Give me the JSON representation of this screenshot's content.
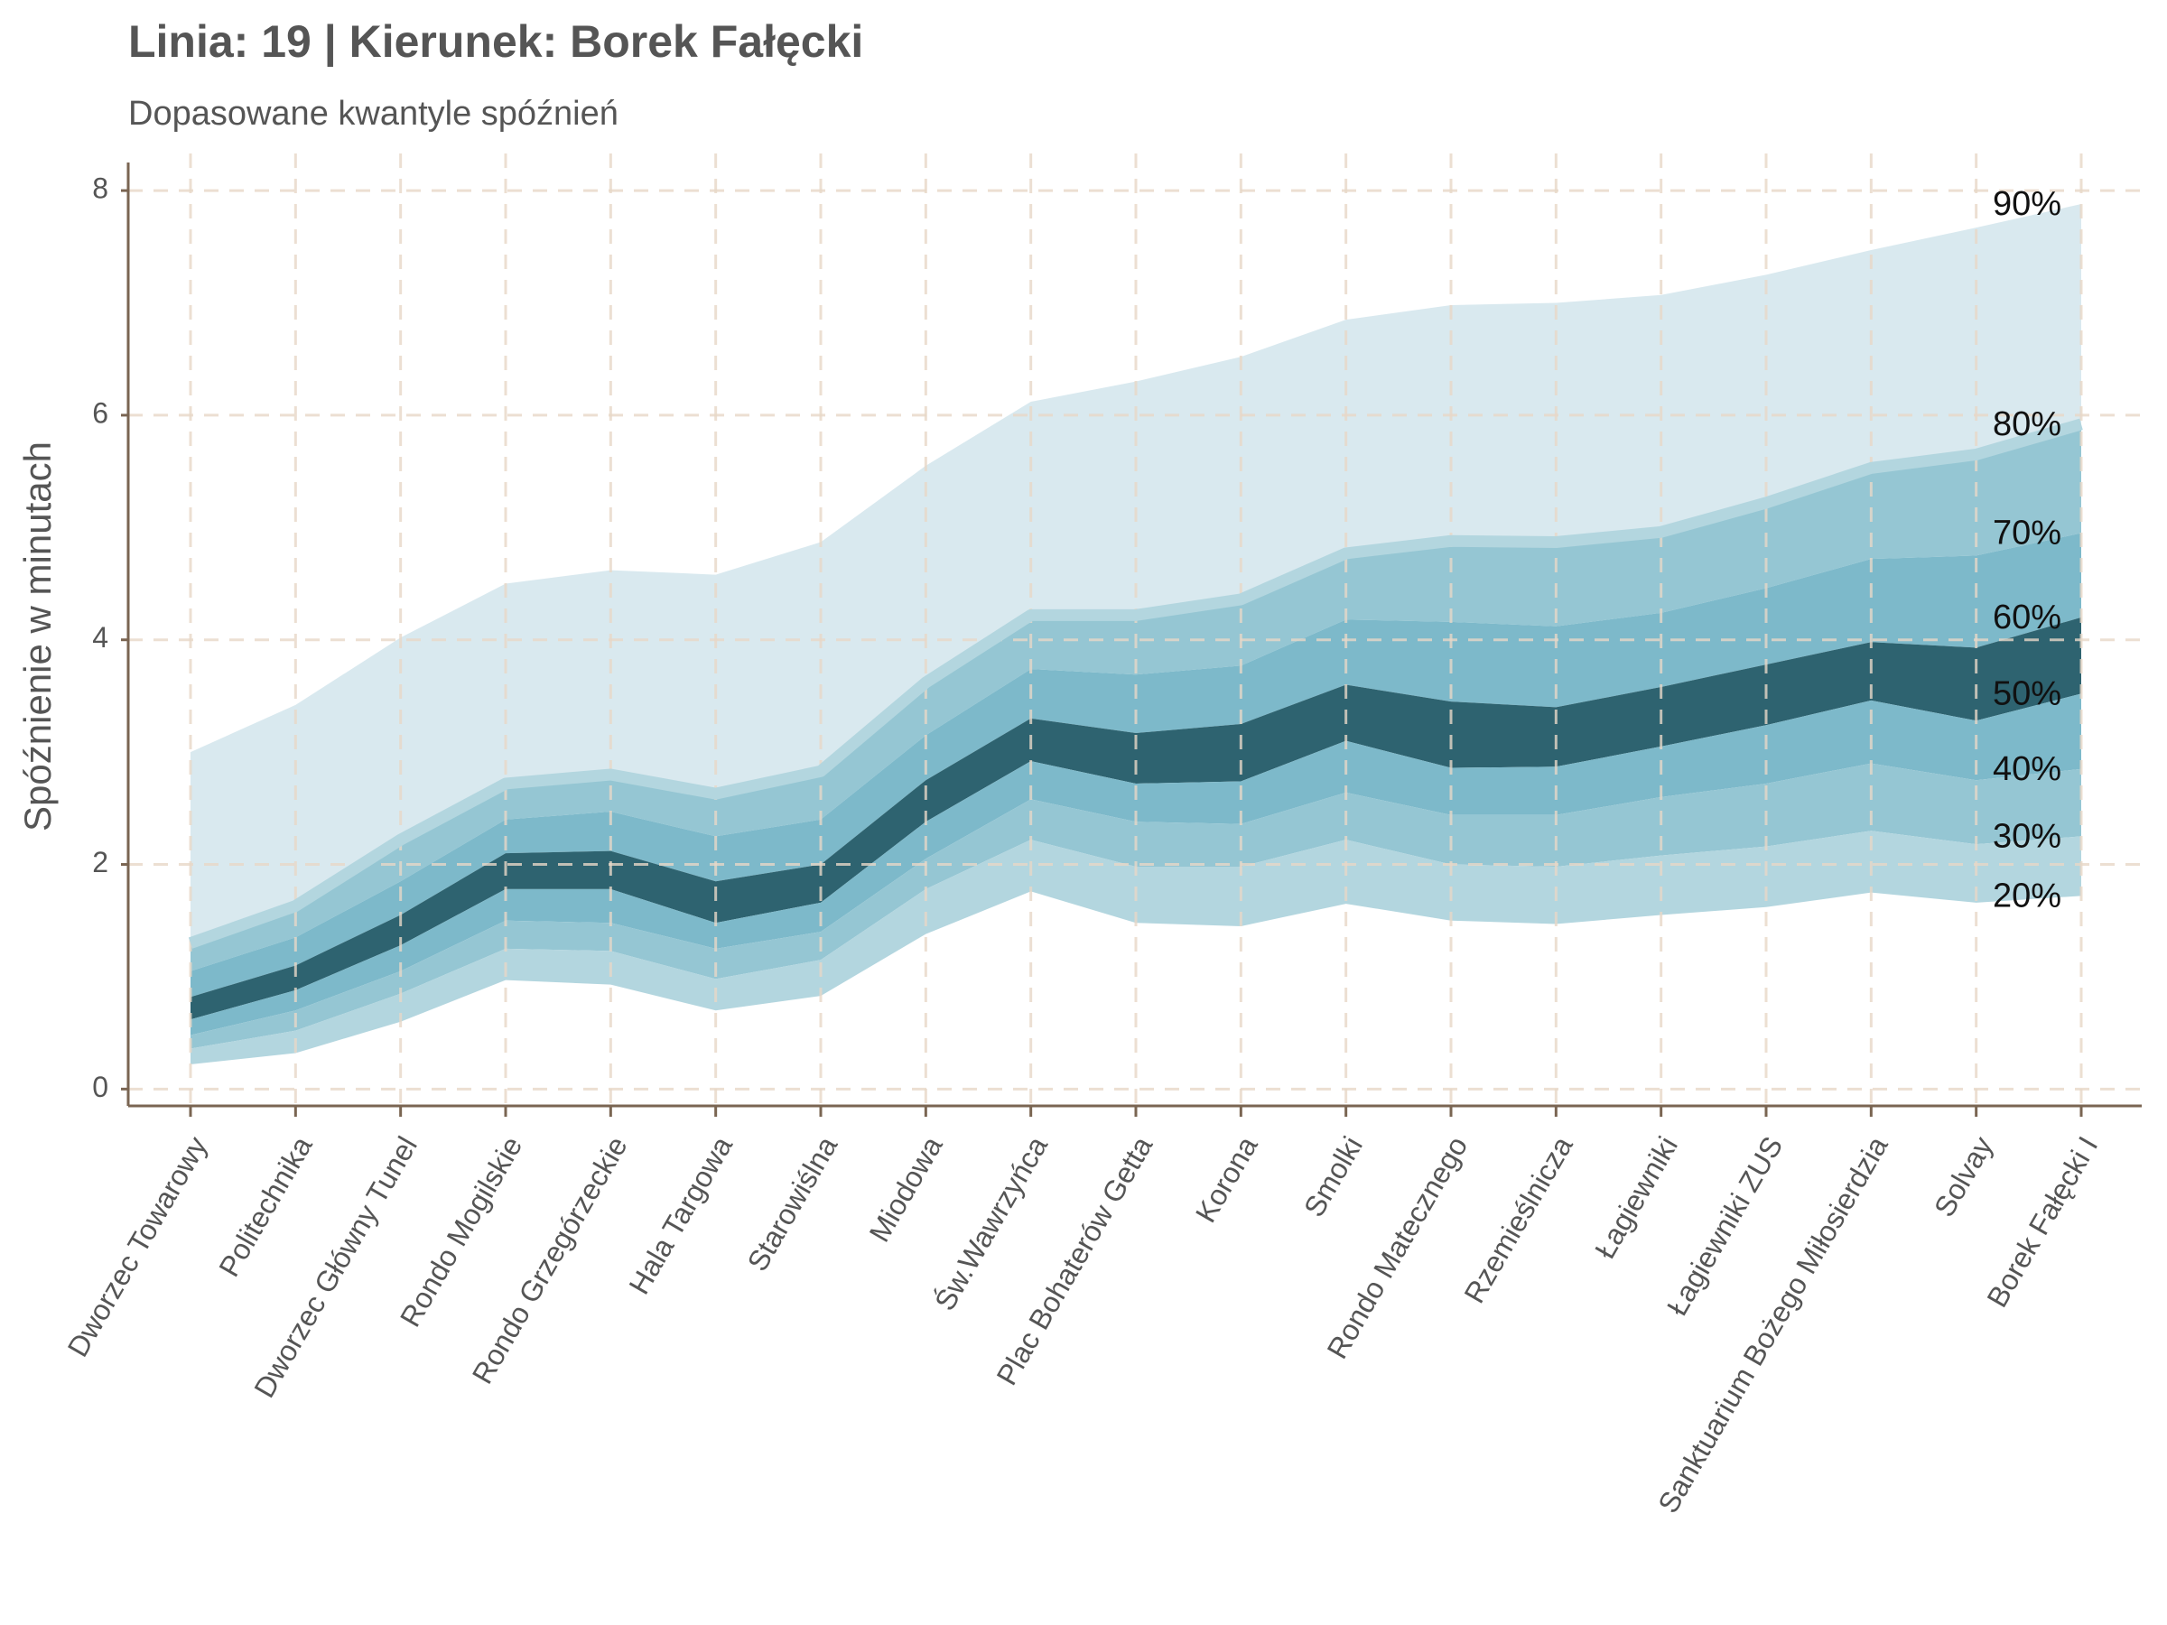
{
  "chart_data": {
    "type": "fan",
    "title": "Linia: 19 | Kierunek: Borek Fałęcki",
    "subtitle": "Dopasowane kwantyle spóźnień",
    "y_label": "Spóźnienie w minutach",
    "categories": [
      "Dworzec Towarowy",
      "Politechnika",
      "Dworzec Główny Tunel",
      "Rondo Mogilskie",
      "Rondo Grzegórzeckie",
      "Hala Targowa",
      "Starowiślna",
      "Miodowa",
      "Św.Wawrzyńca",
      "Plac Bohaterów Getta",
      "Korona",
      "Smolki",
      "Rondo Matecznego",
      "Rzemieślnicza",
      "Łagiewniki",
      "Łagiewniki ZUS",
      "Sanktuarium Bożego Miłosierdzia",
      "Solvay",
      "Borek Fałęcki I"
    ],
    "series": [
      {
        "name": "90%",
        "color": "#d9e9ef",
        "values": [
          3.0,
          3.42,
          4.02,
          4.5,
          4.62,
          4.58,
          4.87,
          5.55,
          6.12,
          6.3,
          6.52,
          6.85,
          6.98,
          7.0,
          7.07,
          7.25,
          7.47,
          7.67,
          7.88
        ]
      },
      {
        "name": "80%",
        "color": "#b3d6df",
        "values": [
          1.3,
          1.63,
          2.22,
          2.72,
          2.8,
          2.63,
          2.83,
          3.62,
          4.22,
          4.22,
          4.36,
          4.77,
          4.88,
          4.87,
          4.96,
          5.22,
          5.53,
          5.65,
          5.92
        ]
      },
      {
        "name": "70%",
        "color": "#95c6d3",
        "values": [
          1.05,
          1.35,
          1.85,
          2.4,
          2.47,
          2.25,
          2.4,
          3.15,
          3.74,
          3.69,
          3.77,
          4.18,
          4.16,
          4.12,
          4.24,
          4.46,
          4.72,
          4.75,
          4.95
        ]
      },
      {
        "name": "60%",
        "color": "#7db9ca",
        "values": [
          0.82,
          1.1,
          1.55,
          2.1,
          2.12,
          1.85,
          2.0,
          2.75,
          3.3,
          3.17,
          3.25,
          3.6,
          3.45,
          3.4,
          3.58,
          3.78,
          3.98,
          3.93,
          4.2
        ]
      },
      {
        "name": "50%",
        "color": "#2e6370",
        "values": [
          0.62,
          0.88,
          1.28,
          1.78,
          1.78,
          1.48,
          1.66,
          2.38,
          2.92,
          2.72,
          2.74,
          3.1,
          2.86,
          2.87,
          3.05,
          3.24,
          3.46,
          3.28,
          3.52
        ]
      },
      {
        "name": "40%",
        "color": "#7db9ca",
        "values": [
          0.48,
          0.7,
          1.05,
          1.5,
          1.48,
          1.25,
          1.4,
          2.05,
          2.58,
          2.38,
          2.36,
          2.64,
          2.44,
          2.44,
          2.6,
          2.72,
          2.9,
          2.75,
          2.85
        ]
      },
      {
        "name": "30%",
        "color": "#95c6d3",
        "values": [
          0.36,
          0.52,
          0.85,
          1.25,
          1.23,
          0.98,
          1.15,
          1.78,
          2.22,
          1.98,
          1.98,
          2.22,
          2.0,
          1.98,
          2.08,
          2.16,
          2.3,
          2.18,
          2.25
        ]
      },
      {
        "name": "20%",
        "color": "#b3d6df",
        "values": [
          0.22,
          0.32,
          0.6,
          0.97,
          0.93,
          0.7,
          0.83,
          1.38,
          1.76,
          1.48,
          1.45,
          1.65,
          1.5,
          1.47,
          1.55,
          1.62,
          1.75,
          1.66,
          1.72
        ]
      }
    ],
    "ylim": [
      -0.15,
      8.25
    ],
    "yticks": [
      0,
      2,
      4,
      6,
      8
    ],
    "grid": true
  }
}
